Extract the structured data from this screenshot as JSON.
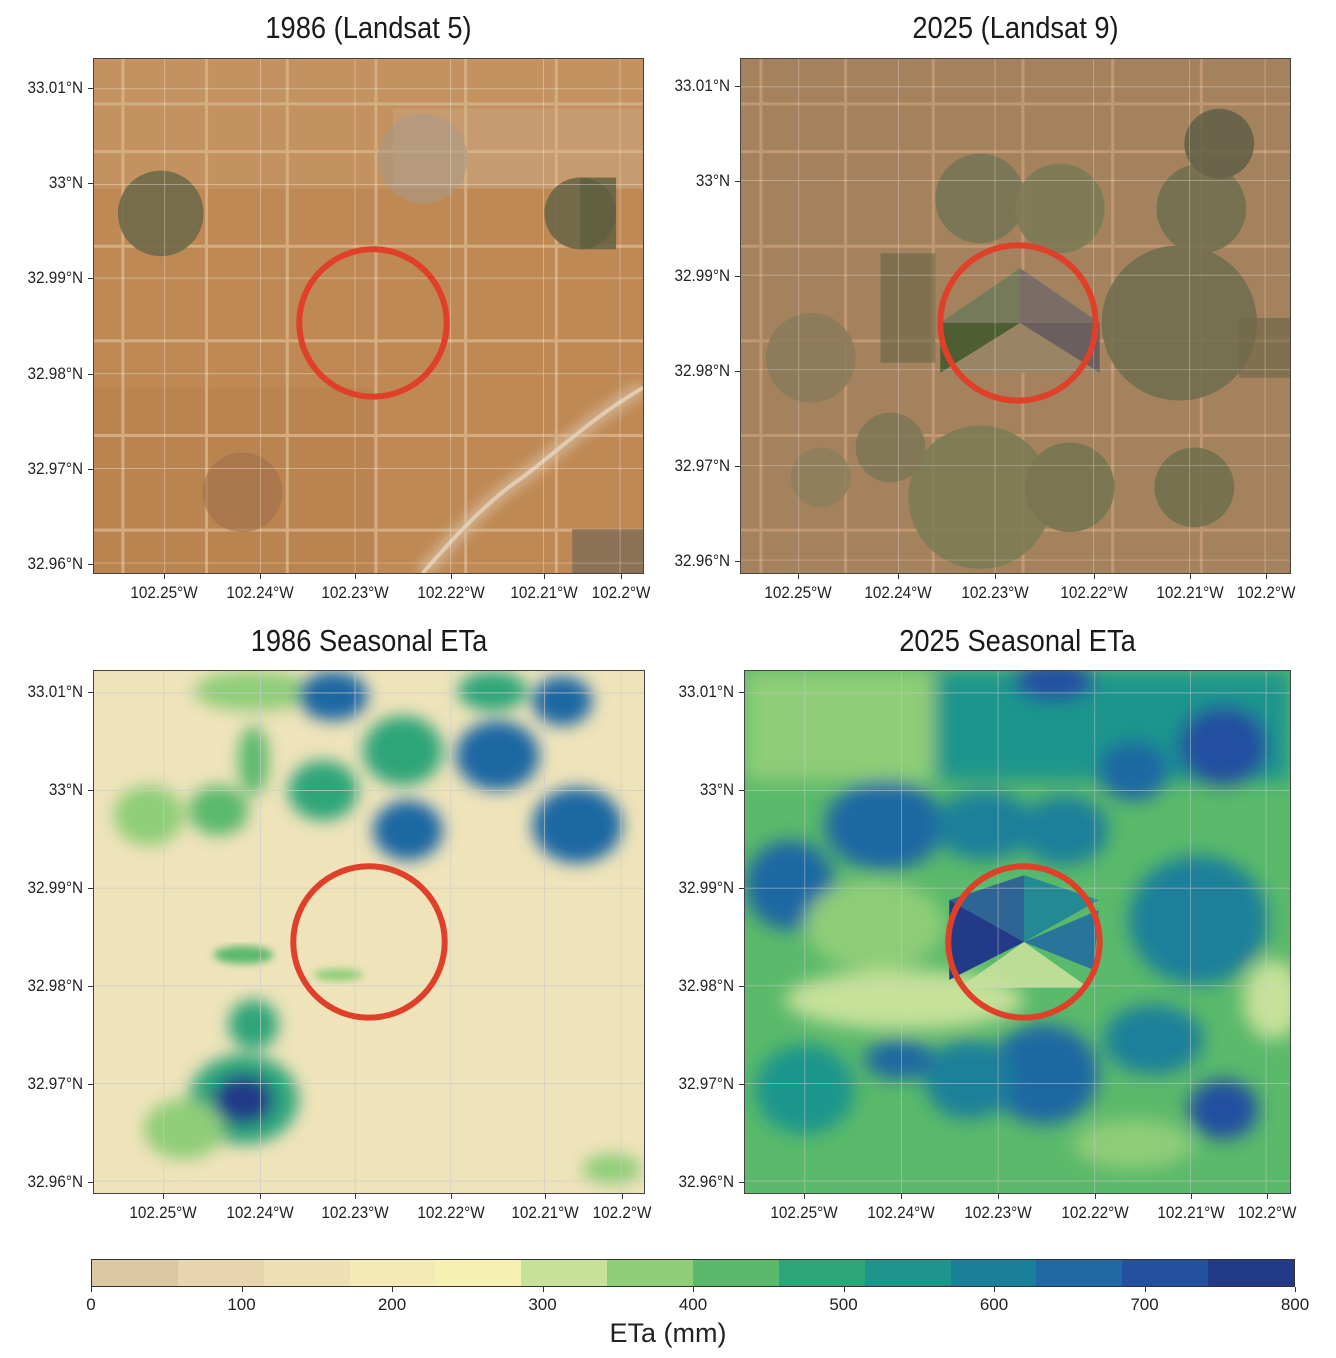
{
  "panels": [
    {
      "id": "sat1986",
      "title": "1986 (Landsat 5)"
    },
    {
      "id": "sat2025",
      "title": "2025 (Landsat 9)"
    },
    {
      "id": "eta1986",
      "title": "1986 Seasonal ETa"
    },
    {
      "id": "eta2025",
      "title": "2025 Seasonal ETa"
    }
  ],
  "lat_ticks": [
    "33.01°N",
    "33°N",
    "32.99°N",
    "32.98°N",
    "32.97°N",
    "32.96°N"
  ],
  "lon_ticks": [
    "102.25°W",
    "102.24°W",
    "102.23°W",
    "102.22°W",
    "102.21°W",
    "102.2°W"
  ],
  "colorbar": {
    "label": "ETa (mm)",
    "ticks": [
      "0",
      "100",
      "200",
      "300",
      "400",
      "500",
      "600",
      "700",
      "800"
    ],
    "range": [
      0,
      800
    ],
    "colors": [
      "#dcc7a3",
      "#e8d4ad",
      "#eee0b4",
      "#f3eab6",
      "#f6f1b2",
      "#c6e19a",
      "#8fcd78",
      "#5ab96a",
      "#2ea579",
      "#1d958d",
      "#1a809a",
      "#1f68a3",
      "#2450a0",
      "#233a88"
    ]
  },
  "marker": {
    "type": "circle",
    "color": "#e0402a"
  }
}
